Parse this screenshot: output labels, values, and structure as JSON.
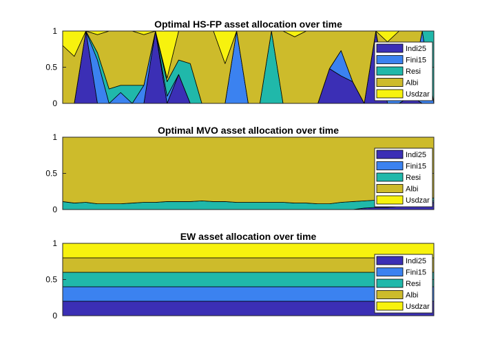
{
  "chart_data": [
    {
      "type": "area",
      "title": "Optimal HS-FP asset allocation over time",
      "ylim": [
        0,
        1
      ],
      "yticks": [
        "0",
        "0.5",
        "1"
      ],
      "legend_position": "top-right",
      "x": [
        0,
        1,
        2,
        3,
        4,
        5,
        6,
        7,
        8,
        9,
        10,
        11,
        12,
        13,
        14,
        15,
        16,
        17,
        18,
        19,
        20,
        21,
        22,
        23,
        24,
        25,
        26,
        27,
        28,
        29,
        30,
        31,
        32
      ],
      "series": [
        {
          "name": "Indi25",
          "color": "#3b2fb5",
          "values": [
            0,
            0,
            1,
            0,
            0,
            0,
            0,
            0,
            1,
            0,
            0.4,
            0,
            0,
            0,
            0,
            0,
            0,
            0,
            0,
            0,
            0,
            0,
            0,
            0.48,
            0.38,
            0.3,
            0,
            1,
            0,
            0,
            0.1,
            0,
            0
          ]
        },
        {
          "name": "Fini15",
          "color": "#3b82f0",
          "values": [
            0,
            0,
            0,
            0.6,
            0,
            0.15,
            0,
            0.25,
            0,
            0.1,
            0,
            0,
            0,
            0,
            0,
            1,
            0,
            0,
            0,
            0,
            0,
            0,
            0,
            0,
            0.35,
            0,
            0,
            0,
            0.1,
            0.45,
            0.1,
            1,
            0
          ]
        },
        {
          "name": "Resi",
          "color": "#20b8aa",
          "values": [
            0,
            0,
            0,
            0.1,
            0.2,
            0.1,
            0.25,
            0,
            0,
            0.2,
            0.2,
            0.55,
            0,
            0,
            0,
            0,
            0,
            0,
            1,
            0,
            0,
            0,
            0,
            0,
            0,
            0,
            0,
            0,
            0,
            0,
            0,
            0,
            1
          ]
        },
        {
          "name": "Albi",
          "color": "#cdbb2b",
          "values": [
            0.8,
            0.65,
            0,
            0.25,
            0.8,
            0.75,
            0.75,
            0.7,
            0,
            0.05,
            0.4,
            0.45,
            1,
            1,
            0.55,
            0,
            1,
            1,
            0,
            1,
            0.92,
            1,
            1,
            0.52,
            0.27,
            0.7,
            1,
            0,
            0.75,
            0.55,
            0.8,
            0,
            0
          ]
        },
        {
          "name": "Usdzar",
          "color": "#f7f20e",
          "values": [
            0.2,
            0.35,
            0,
            0.05,
            0,
            0,
            0,
            0.05,
            0,
            0.65,
            0,
            0,
            0,
            0,
            0.45,
            0,
            0,
            0,
            0,
            0,
            0.08,
            0,
            0,
            0,
            0,
            0,
            0,
            0,
            0.15,
            0,
            0,
            0,
            0
          ]
        }
      ]
    },
    {
      "type": "area",
      "title": "Optimal MVO asset allocation over time",
      "ylim": [
        0,
        1
      ],
      "yticks": [
        "0",
        "0.5",
        "1"
      ],
      "legend_position": "top-right",
      "x": [
        0,
        1,
        2,
        3,
        4,
        5,
        6,
        7,
        8,
        9,
        10,
        11,
        12,
        13,
        14,
        15,
        16,
        17,
        18,
        19,
        20,
        21,
        22,
        23,
        24,
        25,
        26,
        27,
        28,
        29,
        30,
        31,
        32
      ],
      "series": [
        {
          "name": "Indi25",
          "color": "#3b2fb5",
          "values": [
            0,
            0,
            0,
            0,
            0,
            0,
            0,
            0,
            0,
            0,
            0,
            0,
            0,
            0,
            0,
            0,
            0,
            0,
            0,
            0,
            0,
            0,
            0,
            0,
            0,
            0,
            0.02,
            0.03,
            0.03,
            0.04,
            0.05,
            0.06,
            0.1
          ]
        },
        {
          "name": "Fini15",
          "color": "#3b82f0",
          "values": [
            0,
            0,
            0,
            0,
            0,
            0,
            0,
            0,
            0,
            0,
            0,
            0,
            0,
            0,
            0,
            0,
            0,
            0,
            0,
            0,
            0,
            0,
            0,
            0,
            0,
            0,
            0,
            0,
            0.01,
            0.01,
            0.02,
            0.02,
            0.02
          ]
        },
        {
          "name": "Resi",
          "color": "#20b8aa",
          "values": [
            0.11,
            0.09,
            0.1,
            0.08,
            0.08,
            0.08,
            0.09,
            0.1,
            0.1,
            0.11,
            0.11,
            0.11,
            0.12,
            0.11,
            0.11,
            0.1,
            0.1,
            0.1,
            0.1,
            0.1,
            0.09,
            0.09,
            0.08,
            0.08,
            0.1,
            0.11,
            0.1,
            0.1,
            0.1,
            0.1,
            0.09,
            0.08,
            0.04
          ]
        },
        {
          "name": "Albi",
          "color": "#cdbb2b",
          "values": [
            0.89,
            0.91,
            0.9,
            0.92,
            0.92,
            0.92,
            0.91,
            0.9,
            0.9,
            0.89,
            0.89,
            0.89,
            0.88,
            0.89,
            0.89,
            0.9,
            0.9,
            0.9,
            0.9,
            0.9,
            0.91,
            0.91,
            0.92,
            0.92,
            0.9,
            0.89,
            0.88,
            0.87,
            0.86,
            0.85,
            0.84,
            0.84,
            0.84
          ]
        },
        {
          "name": "Usdzar",
          "color": "#f7f20e",
          "values": [
            0,
            0,
            0,
            0,
            0,
            0,
            0,
            0,
            0,
            0,
            0,
            0,
            0,
            0,
            0,
            0,
            0,
            0,
            0,
            0,
            0,
            0,
            0,
            0,
            0,
            0,
            0,
            0,
            0,
            0,
            0,
            0,
            0
          ]
        }
      ]
    },
    {
      "type": "area",
      "title": "EW asset allocation over time",
      "ylim": [
        0,
        1
      ],
      "yticks": [
        "0",
        "0.5",
        "1"
      ],
      "legend_position": "top-right",
      "x": [
        0,
        1
      ],
      "series": [
        {
          "name": "Indi25",
          "color": "#3b2fb5",
          "values": [
            0.2,
            0.2
          ]
        },
        {
          "name": "Fini15",
          "color": "#3b82f0",
          "values": [
            0.2,
            0.2
          ]
        },
        {
          "name": "Resi",
          "color": "#20b8aa",
          "values": [
            0.2,
            0.2
          ]
        },
        {
          "name": "Albi",
          "color": "#cdbb2b",
          "values": [
            0.2,
            0.2
          ]
        },
        {
          "name": "Usdzar",
          "color": "#f7f20e",
          "values": [
            0.2,
            0.2
          ]
        }
      ]
    }
  ]
}
